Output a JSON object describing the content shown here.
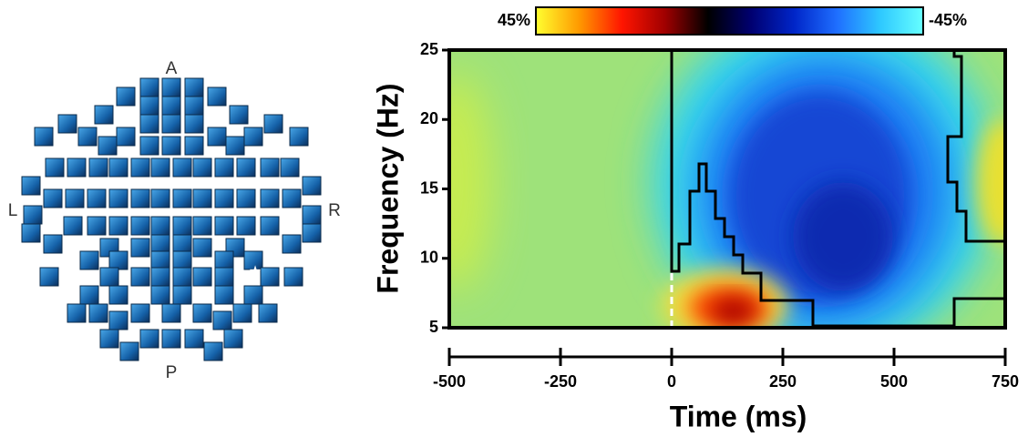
{
  "sensor_map": {
    "labels": [
      "A",
      "L",
      "R",
      "P"
    ]
  },
  "chart_data": {
    "type": "heatmap",
    "xlabel": "Time (ms)",
    "ylabel": "Frequency (Hz)",
    "xlim": [
      -500,
      750
    ],
    "xticks": [
      -500,
      -250,
      0,
      250,
      500,
      750
    ],
    "ylim": [
      5,
      25
    ],
    "yticks": [
      5,
      10,
      15,
      20,
      25
    ],
    "colorbar": {
      "lim": [
        45,
        -45
      ],
      "ticks": [
        {
          "value": 45,
          "label": "45%"
        },
        {
          "value": -45,
          "label": "-45%"
        }
      ],
      "colormap": [
        "#ffff30",
        "#ff9a00",
        "#ff1500",
        "#a00000",
        "#000000",
        "#000070",
        "#0025c8",
        "#1f6fff",
        "#2ec8ff",
        "#66ffff"
      ]
    }
  }
}
